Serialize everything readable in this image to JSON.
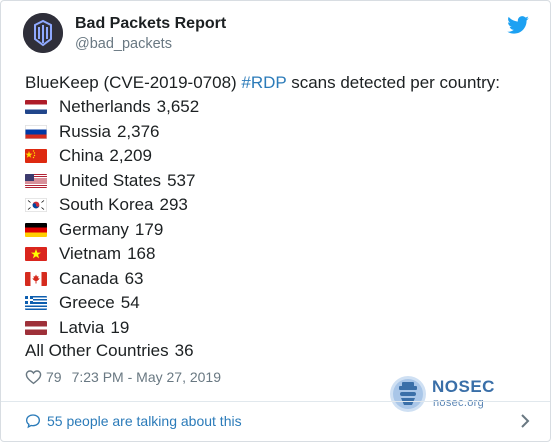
{
  "author": {
    "name": "Bad Packets Report",
    "handle": "@bad_packets"
  },
  "tweet": {
    "text_before": "BlueKeep (CVE-2019-0708) ",
    "hashtag": "#RDP",
    "text_after": " scans detected per country:",
    "countries": [
      {
        "name": "Netherlands",
        "count": "3,652",
        "flag": "netherlands-flag-icon"
      },
      {
        "name": "Russia",
        "count": "2,376",
        "flag": "russia-flag-icon"
      },
      {
        "name": "China",
        "count": "2,209",
        "flag": "china-flag-icon"
      },
      {
        "name": "United States",
        "count": "537",
        "flag": "united-states-flag-icon"
      },
      {
        "name": "South Korea",
        "count": "293",
        "flag": "south-korea-flag-icon"
      },
      {
        "name": "Germany",
        "count": "179",
        "flag": "germany-flag-icon"
      },
      {
        "name": "Vietnam",
        "count": "168",
        "flag": "vietnam-flag-icon"
      },
      {
        "name": "Canada",
        "count": "63",
        "flag": "canada-flag-icon"
      },
      {
        "name": "Greece",
        "count": "54",
        "flag": "greece-flag-icon"
      },
      {
        "name": "Latvia",
        "count": "19",
        "flag": "latvia-flag-icon"
      }
    ],
    "other_label": "All Other Countries",
    "other_count": "36"
  },
  "meta": {
    "likes": "79",
    "timestamp": "7:23 PM - May 27, 2019"
  },
  "watermark": {
    "title": "NOSEC",
    "subtitle": "nosec.org"
  },
  "footer": {
    "talking": "55 people are talking about this"
  },
  "colors": {
    "link": "#2b7bb9",
    "text": "#1c2022",
    "muted": "#697882",
    "twitter_blue": "#1da1f2"
  }
}
